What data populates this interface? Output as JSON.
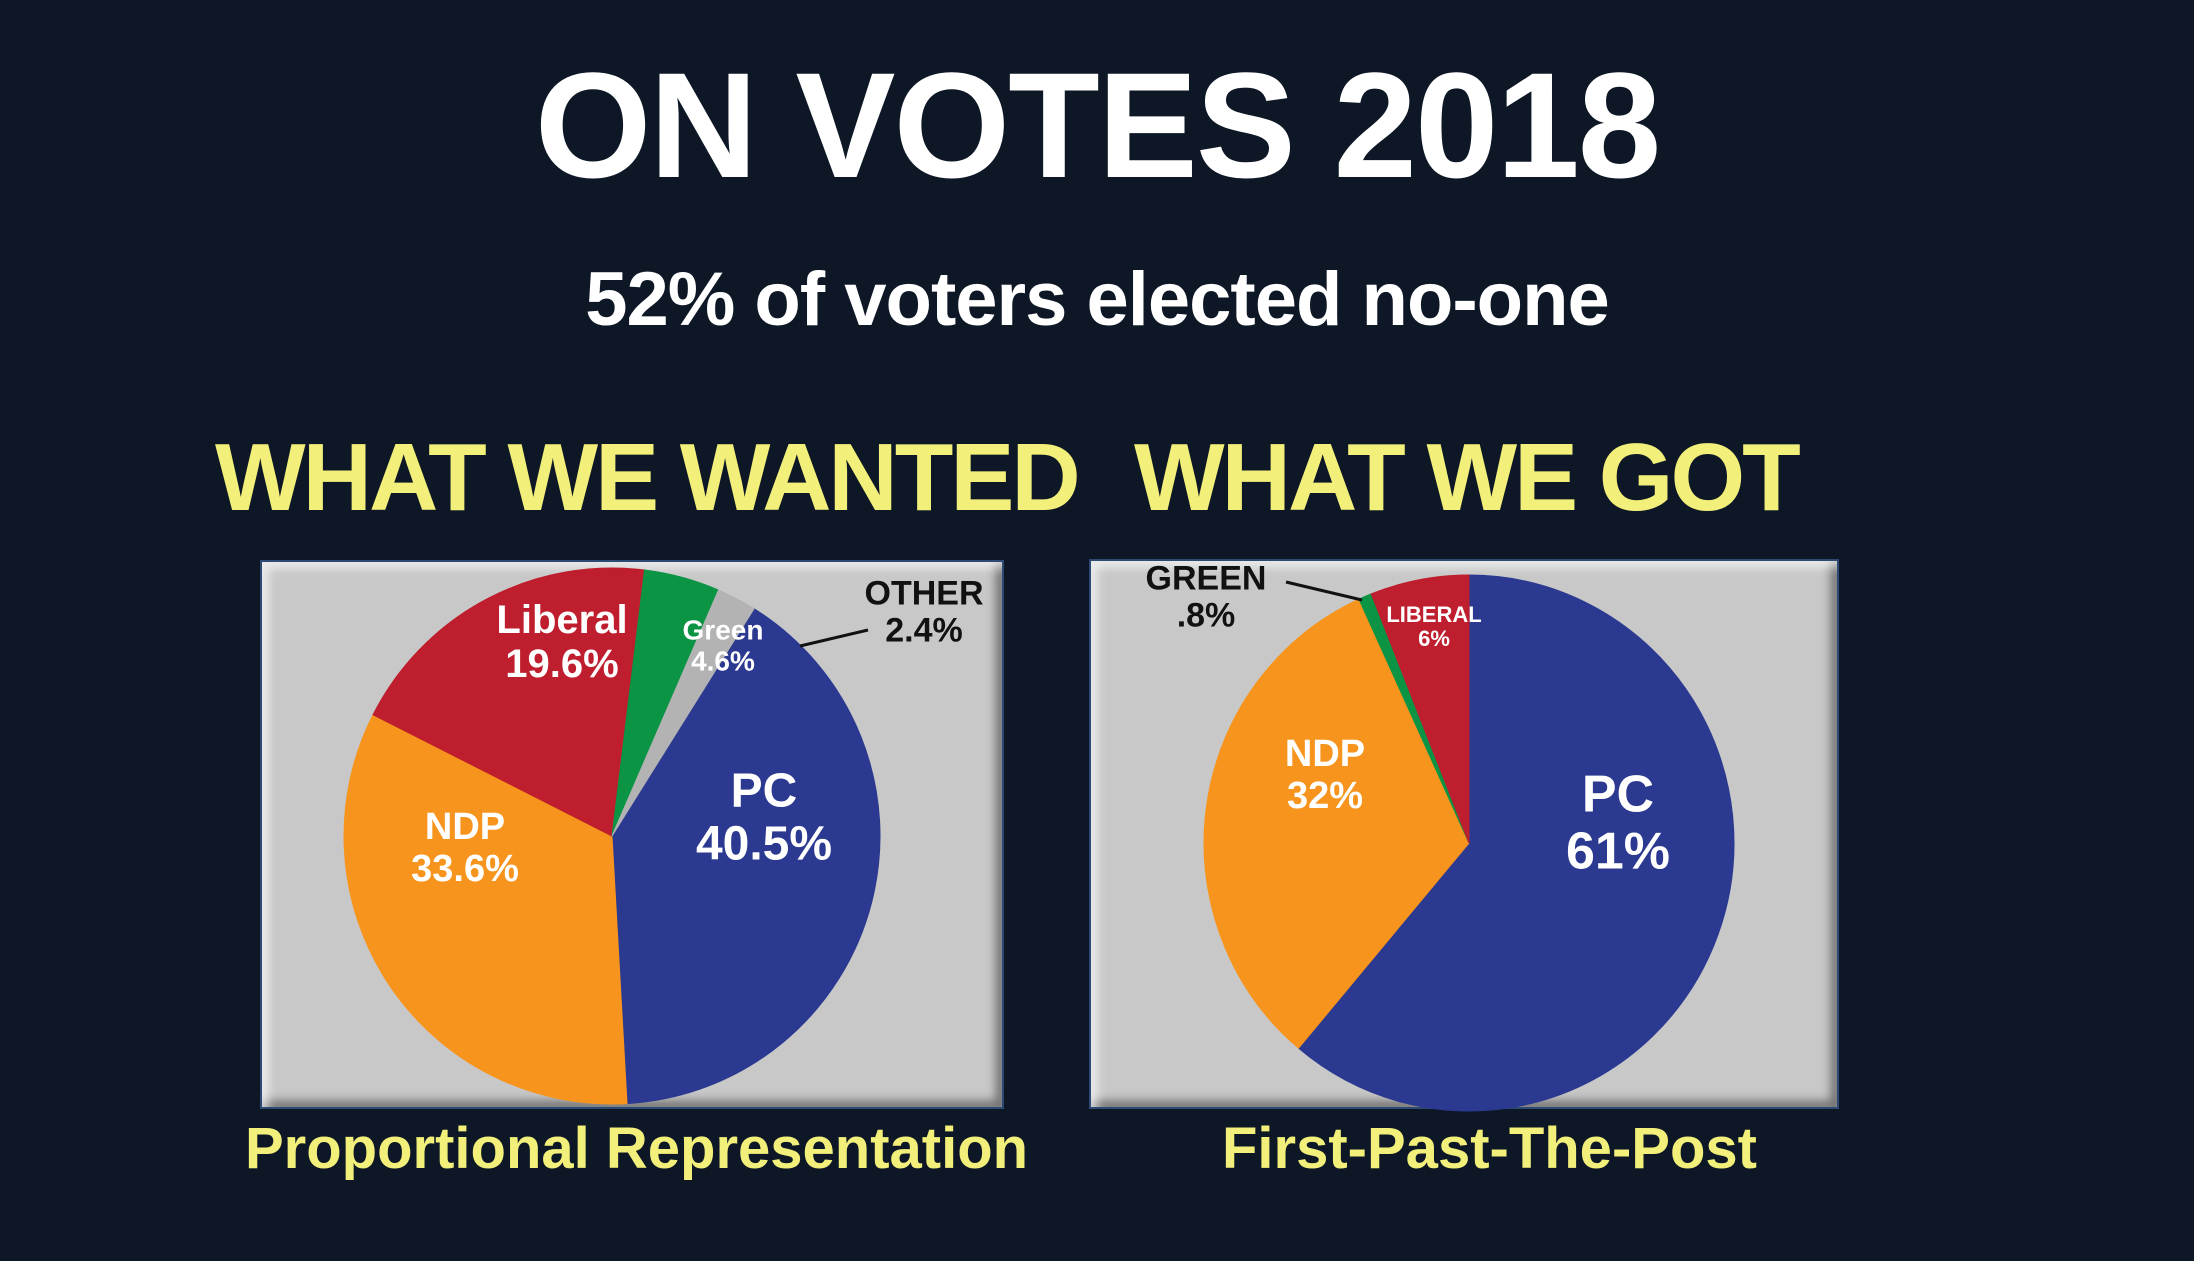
{
  "header": {
    "title": "ON VOTES 2018",
    "subtitle": "52% of  voters elected no-one"
  },
  "left": {
    "heading": "WHAT WE WANTED",
    "caption": "Proportional Representation"
  },
  "right": {
    "heading": "WHAT WE GOT",
    "caption": "First-Past-The-Post"
  },
  "colors": {
    "background": "#0d1726",
    "heading": "#f2ef7a",
    "panel": "#c8c8c8",
    "pc": "#2b3990",
    "ndp": "#f7941d",
    "liberal": "#be1e2d",
    "green": "#0b9444",
    "other": "#b3b3b3"
  },
  "chart_data": [
    {
      "type": "pie",
      "title": "WHAT WE WANTED",
      "slices": [
        {
          "name": "PC",
          "label": "PC",
          "value_label": "40.5%",
          "value": 40.5,
          "color": "#2b3990"
        },
        {
          "name": "NDP",
          "label": "NDP",
          "value_label": "33.6%",
          "value": 33.6,
          "color": "#f7941d"
        },
        {
          "name": "Liberal",
          "label": "Liberal",
          "value_label": "19.6%",
          "value": 19.6,
          "color": "#be1e2d"
        },
        {
          "name": "Green",
          "label": "Green",
          "value_label": "4.6%",
          "value": 4.6,
          "color": "#0b9444"
        },
        {
          "name": "OTHER",
          "label": "OTHER",
          "value_label": "2.4%",
          "value": 2.4,
          "color": "#b3b3b3"
        }
      ]
    },
    {
      "type": "pie",
      "title": "WHAT WE GOT",
      "slices": [
        {
          "name": "PC",
          "label": "PC",
          "value_label": "61%",
          "value": 61,
          "color": "#2b3990"
        },
        {
          "name": "NDP",
          "label": "NDP",
          "value_label": "32%",
          "value": 32,
          "color": "#f7941d"
        },
        {
          "name": "GREEN",
          "label": "GREEN",
          "value_label": ".8%",
          "value": 0.8,
          "color": "#0b9444"
        },
        {
          "name": "LIBERAL",
          "label": "LIBERAL",
          "value_label": "6%",
          "value": 6,
          "color": "#be1e2d"
        }
      ]
    }
  ]
}
